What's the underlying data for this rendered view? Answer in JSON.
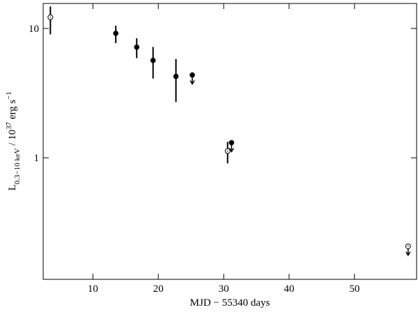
{
  "chart_data": {
    "type": "scatter",
    "xlabel": "MJD − 55340 days",
    "ylabel_parts": [
      {
        "text": "L"
      },
      {
        "text": "0.3−10 keV",
        "shift": "sub"
      },
      {
        "text": " / 10"
      },
      {
        "text": "37",
        "shift": "super"
      },
      {
        "text": " erg s"
      },
      {
        "text": "−1",
        "shift": "super"
      }
    ],
    "xlim": [
      2.4,
      59.5
    ],
    "xticks": [
      10,
      20,
      30,
      40,
      50
    ],
    "ylim": [
      0.115,
      15.6
    ],
    "yticks": [
      1,
      10
    ],
    "ylog": true,
    "series": [
      {
        "marker": "open",
        "color": "#000000",
        "x": [
          3.5,
          30.6,
          58.2
        ],
        "values": [
          12.2,
          1.13,
          0.207
        ],
        "err_low": [
          9.0,
          0.905,
          null
        ],
        "err_high": [
          14.8,
          1.33,
          null
        ],
        "upper_limit": [
          false,
          false,
          true
        ]
      },
      {
        "marker": "filled",
        "color": "#000000",
        "x": [
          13.5,
          16.7,
          19.2,
          22.7,
          25.2,
          31.2
        ],
        "values": [
          9.17,
          7.17,
          5.66,
          4.26,
          4.37,
          1.31
        ],
        "err_low": [
          7.7,
          5.9,
          4.1,
          2.7,
          null,
          null
        ],
        "err_high": [
          10.5,
          8.4,
          7.2,
          5.8,
          null,
          null
        ],
        "upper_limit": [
          false,
          false,
          false,
          false,
          true,
          true
        ]
      }
    ]
  }
}
